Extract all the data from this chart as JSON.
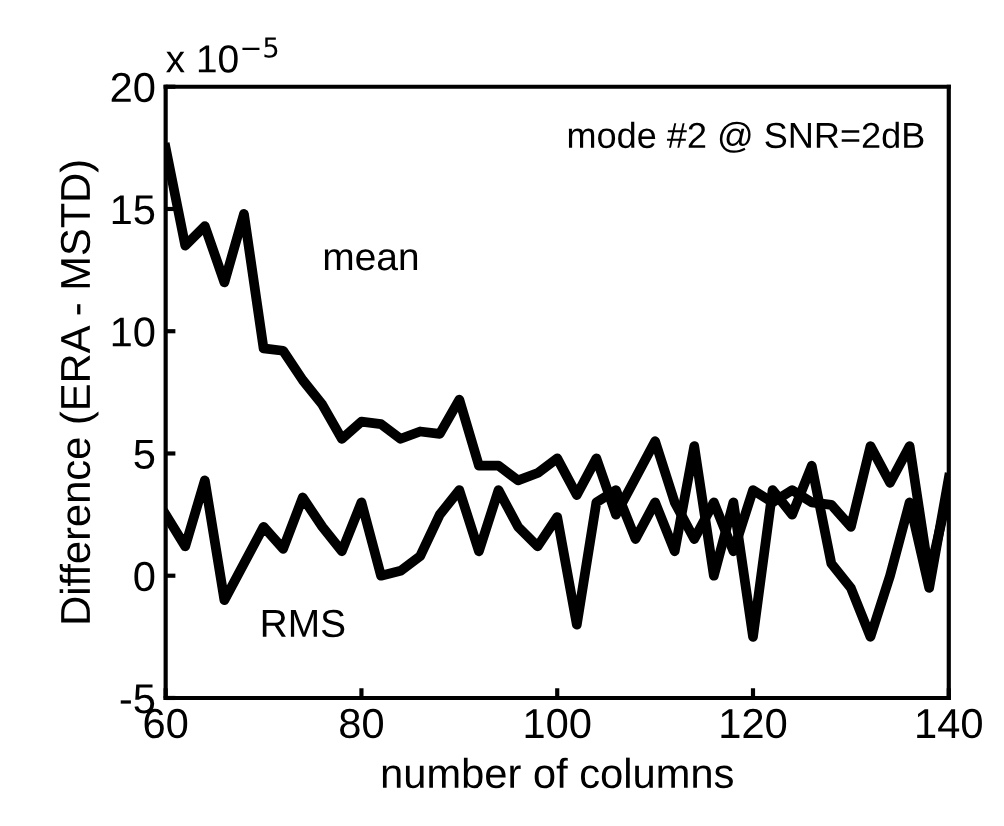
{
  "chart_data": {
    "type": "line",
    "xlabel": "number of columns",
    "ylabel": "Difference (ERA - MSTD)",
    "annotations": [
      "mode #2 @ SNR=2dB",
      "x 10$^{−5}$"
    ],
    "x": [
      60,
      62,
      64,
      66,
      68,
      70,
      72,
      74,
      76,
      78,
      80,
      82,
      84,
      86,
      88,
      90,
      92,
      94,
      96,
      98,
      100,
      102,
      104,
      106,
      108,
      110,
      112,
      114,
      116,
      118,
      120,
      122,
      124,
      126,
      128,
      130,
      132,
      134,
      136,
      138,
      140
    ],
    "series": [
      {
        "name": "mean",
        "color": "#000000",
        "values": [
          17.5,
          13.5,
          14.3,
          12,
          14.8,
          9.3,
          9.2,
          8,
          7,
          5.6,
          6.3,
          6.2,
          5.6,
          5.9,
          5.8,
          7.2,
          4.5,
          4.5,
          3.9,
          4.2,
          4.8,
          3.3,
          4.8,
          2.5,
          4.0,
          5.5,
          3.0,
          1.5,
          3.0,
          1.0,
          3.5,
          3.0,
          3.5,
          3.0,
          2.9,
          2.0,
          5.3,
          3.8,
          5.3,
          0,
          3.5
        ]
      },
      {
        "name": "RMS",
        "color": "#000000",
        "values": [
          2.5,
          1.2,
          3.9,
          -1,
          0.5,
          2,
          1.1,
          3.2,
          2,
          1,
          3,
          0,
          0.2,
          0.8,
          2.5,
          3.5,
          1,
          3.5,
          2,
          1.2,
          2.4,
          -2,
          3,
          3.5,
          1.5,
          3,
          1,
          5.3,
          0,
          3,
          -2.5,
          3.5,
          2.5,
          4.5,
          0.5,
          -0.5,
          -2.5,
          0,
          3,
          -0.5,
          4.0
        ]
      }
    ],
    "xlim": [
      60,
      140
    ],
    "ylim": [
      -5,
      20
    ],
    "xticks": [
      60,
      80,
      100,
      120,
      140
    ],
    "yticks": [
      -5,
      0,
      5,
      10,
      15,
      20
    ],
    "grid": false,
    "legend": false,
    "line_style": "solid",
    "marker": "none"
  }
}
